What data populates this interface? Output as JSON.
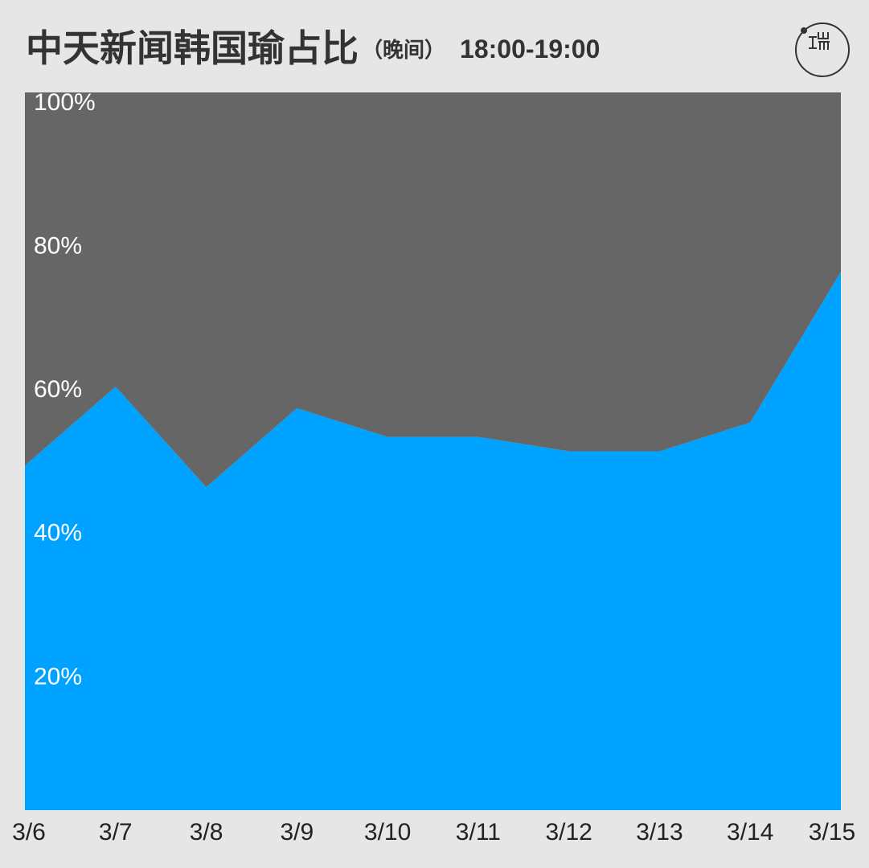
{
  "chart_data": {
    "type": "area",
    "stacked": true,
    "title": "中天新闻韩国瑜占比",
    "subtitle": "（晚间）",
    "time_range": "18:00-19:00",
    "categories": [
      "3/6",
      "3/7",
      "3/8",
      "3/9",
      "3/10",
      "3/11",
      "3/12",
      "3/13",
      "3/14",
      "3/15"
    ],
    "series": [
      {
        "color": "#00a2ff",
        "values": [
          48,
          59,
          45,
          56,
          52,
          52,
          50,
          50,
          54,
          75
        ]
      },
      {
        "color": "#666666",
        "values": [
          52,
          41,
          55,
          44,
          48,
          48,
          50,
          50,
          46,
          25
        ]
      }
    ],
    "ylim": [
      0,
      100
    ],
    "yticks": [
      {
        "value": 20,
        "label": "20%"
      },
      {
        "value": 40,
        "label": "40%"
      },
      {
        "value": 60,
        "label": "60%"
      },
      {
        "value": 80,
        "label": "80%"
      },
      {
        "value": 100,
        "label": "100%"
      }
    ],
    "grid": false
  }
}
